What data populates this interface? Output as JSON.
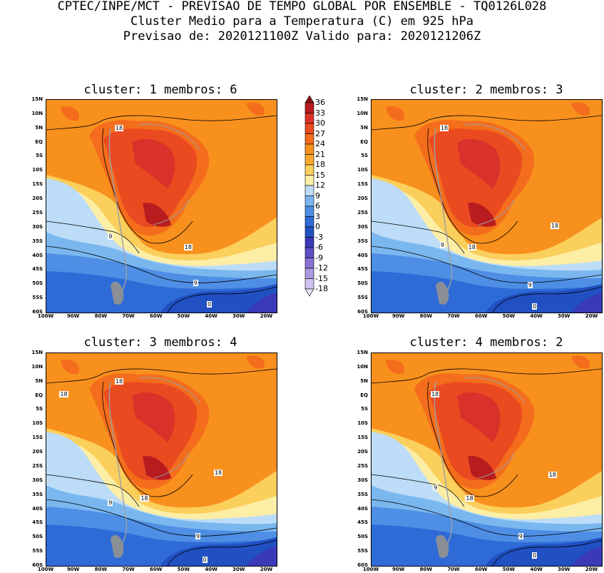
{
  "header": {
    "line1": "CPTEC/INPE/MCT - PREVISAO DE TEMPO GLOBAL POR ENSEMBLE - TQ0126L028",
    "line2": "Cluster Medio para a Temperatura (C) em 925 hPa",
    "line3": "Previsao de: 2020121100Z   Valido para: 2020121206Z"
  },
  "panels": [
    {
      "title": "cluster: 1  membros: 6",
      "contours": [
        "18",
        "9",
        "18",
        "9",
        "0"
      ]
    },
    {
      "title": "cluster: 2  membros: 3",
      "contours": [
        "18",
        "9",
        "18",
        "18",
        "9",
        "0"
      ]
    },
    {
      "title": "cluster: 3  membros: 4",
      "contours": [
        "18",
        "18",
        "9",
        "18",
        "18",
        "9",
        "0"
      ]
    },
    {
      "title": "cluster: 4  membros: 2",
      "contours": [
        "18",
        "9",
        "18",
        "18",
        "9",
        "0"
      ]
    }
  ],
  "lat_ticks": [
    "15N",
    "10N",
    "5N",
    "EQ",
    "5S",
    "10S",
    "15S",
    "20S",
    "25S",
    "30S",
    "35S",
    "40S",
    "45S",
    "50S",
    "55S",
    "60S"
  ],
  "lon_ticks": [
    "100W",
    "90W",
    "80W",
    "70W",
    "60W",
    "50W",
    "40W",
    "30W",
    "20W"
  ],
  "colorbar": {
    "labels": [
      "36",
      "33",
      "30",
      "27",
      "24",
      "21",
      "18",
      "15",
      "12",
      "9",
      "6",
      "3",
      "0",
      "-3",
      "-6",
      "-9",
      "-12",
      "-15",
      "-18"
    ],
    "colors": [
      "#8b0f12",
      "#b81c1e",
      "#d9322a",
      "#ea4a20",
      "#f46d1c",
      "#f8901e",
      "#f9a92a",
      "#fbcf5c",
      "#fdeea6",
      "#bcdcf7",
      "#7ab7ef",
      "#4e8ee4",
      "#2f6bd6",
      "#2050c2",
      "#3a3ab8",
      "#5c4ec4",
      "#8670d4",
      "#ab98e0",
      "#cfc2ee",
      "#e9e2f7"
    ]
  }
}
